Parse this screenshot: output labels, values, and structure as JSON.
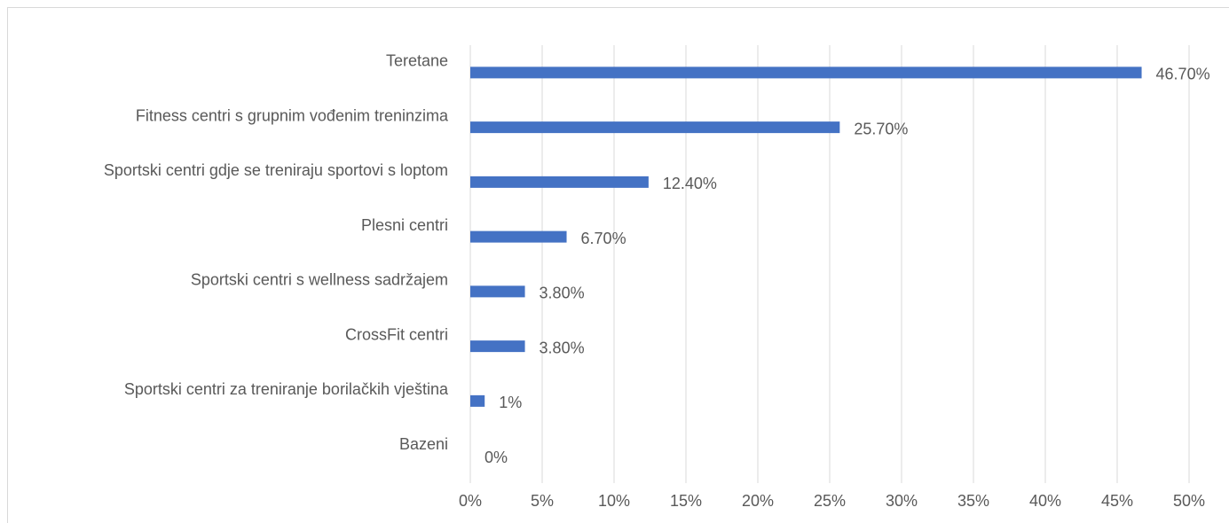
{
  "chart_data": {
    "type": "bar",
    "orientation": "horizontal",
    "categories": [
      "Teretane",
      "Fitness centri s grupnim vođenim treninzima",
      "Sportski centri gdje se treniraju sportovi s loptom",
      "Plesni centri",
      "Sportski centri s wellness sadržajem",
      "CrossFit centri",
      "Sportski centri za treniranje borilačkih vještina",
      "Bazeni"
    ],
    "values": [
      46.7,
      25.7,
      12.4,
      6.7,
      3.8,
      3.8,
      1,
      0
    ],
    "value_labels": [
      "46.70%",
      "25.70%",
      "12.40%",
      "6.70%",
      "3.80%",
      "3.80%",
      "1%",
      "0%"
    ],
    "color": "#4472c4",
    "xlim": [
      0,
      50
    ],
    "xticks": [
      {
        "value": 0,
        "label": "0%"
      },
      {
        "value": 5,
        "label": "5%"
      },
      {
        "value": 10,
        "label": "10%"
      },
      {
        "value": 15,
        "label": "15%"
      },
      {
        "value": 20,
        "label": "20%"
      },
      {
        "value": 25,
        "label": "25%"
      },
      {
        "value": 30,
        "label": "30%"
      },
      {
        "value": 35,
        "label": "35%"
      },
      {
        "value": 40,
        "label": "40%"
      },
      {
        "value": 45,
        "label": "45%"
      },
      {
        "value": 50,
        "label": "50%"
      }
    ],
    "grid": true
  }
}
